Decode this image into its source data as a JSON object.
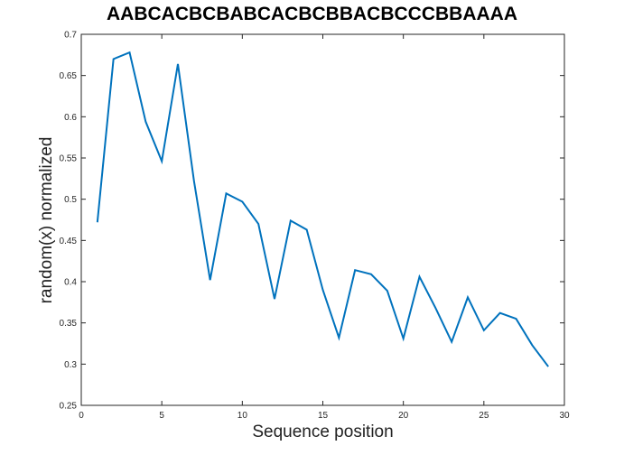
{
  "chart_data": {
    "type": "line",
    "title": "AABCACBCBABCACBCBBACBCCCBBAAAA",
    "xlabel": "Sequence position",
    "ylabel": "random(x) normalized",
    "xlim": [
      0,
      30
    ],
    "ylim": [
      0.25,
      0.7
    ],
    "xticks": [
      0,
      5,
      10,
      15,
      20,
      25,
      30
    ],
    "yticks": [
      0.25,
      0.3,
      0.35,
      0.4,
      0.45,
      0.5,
      0.55,
      0.6,
      0.65,
      0.7
    ],
    "grid": false,
    "line_color": "#0072BD",
    "series": [
      {
        "x": [
          1,
          2,
          3,
          4,
          5,
          6,
          7,
          8,
          9,
          10,
          11,
          12,
          13,
          14,
          15,
          16,
          17,
          18,
          19,
          20,
          21,
          22,
          23,
          24,
          25,
          26,
          27,
          28,
          29
        ],
        "values": [
          0.472,
          0.67,
          0.678,
          0.594,
          0.546,
          0.664,
          0.522,
          0.402,
          0.507,
          0.497,
          0.47,
          0.379,
          0.474,
          0.463,
          0.39,
          0.332,
          0.414,
          0.409,
          0.389,
          0.331,
          0.406,
          0.368,
          0.327,
          0.381,
          0.341,
          0.362,
          0.355,
          0.323,
          0.297
        ]
      }
    ]
  }
}
